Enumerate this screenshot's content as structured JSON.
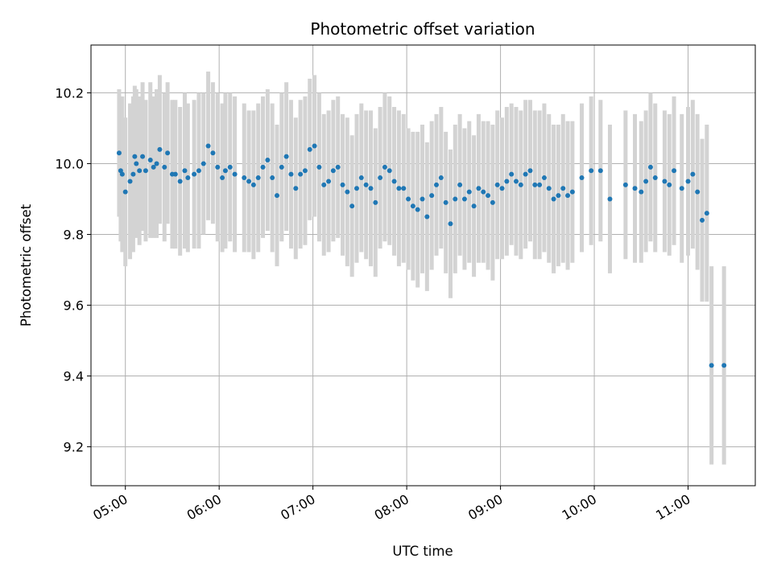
{
  "chart_data": {
    "type": "scatter",
    "title": "Photometric offset variation",
    "xlabel": "UTC time",
    "ylabel": "Photometric offset",
    "x_ticks": [
      "05:00",
      "06:00",
      "07:00",
      "08:00",
      "09:00",
      "10:00",
      "11:00"
    ],
    "y_ticks": [
      "9.2",
      "9.4",
      "9.6",
      "9.8",
      "10.0",
      "10.2"
    ],
    "xlim": [
      "04:38",
      "11:43"
    ],
    "ylim": [
      9.09,
      10.335
    ],
    "grid": true,
    "point_color": "#1f77b4",
    "errorbar_color": "#d3d3d3",
    "series": [
      {
        "x": [
          "04:56",
          "04:57",
          "04:58",
          "05:00",
          "05:03",
          "05:05",
          "05:06",
          "05:07",
          "05:09",
          "05:11",
          "05:13",
          "05:16",
          "05:18",
          "05:20",
          "05:22",
          "05:25",
          "05:27",
          "05:30",
          "05:32",
          "05:35",
          "05:38",
          "05:40",
          "05:44",
          "05:47",
          "05:50",
          "05:53",
          "05:56",
          "05:59",
          "06:02",
          "06:04",
          "06:07",
          "06:10",
          "06:16",
          "06:19",
          "06:22",
          "06:25",
          "06:28",
          "06:31",
          "06:34",
          "06:37",
          "06:40",
          "06:43",
          "06:46",
          "06:49",
          "06:52",
          "06:55",
          "06:58",
          "07:01",
          "07:04",
          "07:07",
          "07:10",
          "07:13",
          "07:16",
          "07:19",
          "07:22",
          "07:25",
          "07:28",
          "07:31",
          "07:34",
          "07:37",
          "07:40",
          "07:43",
          "07:46",
          "07:49",
          "07:52",
          "07:55",
          "07:58",
          "08:01",
          "08:04",
          "08:07",
          "08:10",
          "08:13",
          "08:16",
          "08:19",
          "08:22",
          "08:25",
          "08:28",
          "08:31",
          "08:34",
          "08:37",
          "08:40",
          "08:43",
          "08:46",
          "08:49",
          "08:52",
          "08:55",
          "08:58",
          "09:01",
          "09:04",
          "09:07",
          "09:10",
          "09:13",
          "09:16",
          "09:19",
          "09:22",
          "09:25",
          "09:28",
          "09:31",
          "09:34",
          "09:37",
          "09:40",
          "09:43",
          "09:46",
          "09:52",
          "09:58",
          "10:04",
          "10:10",
          "10:20",
          "10:26",
          "10:30",
          "10:33",
          "10:36",
          "10:39",
          "10:45",
          "10:48",
          "10:51",
          "10:56",
          "11:00",
          "11:03",
          "11:06",
          "11:09",
          "11:12",
          "11:15",
          "11:23"
        ],
        "y": [
          10.03,
          9.98,
          9.97,
          9.92,
          9.95,
          9.97,
          10.02,
          10.0,
          9.98,
          10.02,
          9.98,
          10.01,
          9.99,
          10.0,
          10.04,
          9.99,
          10.03,
          9.97,
          9.97,
          9.95,
          9.98,
          9.96,
          9.97,
          9.98,
          10.0,
          10.05,
          10.03,
          9.99,
          9.96,
          9.98,
          9.99,
          9.97,
          9.96,
          9.95,
          9.94,
          9.96,
          9.99,
          10.01,
          9.96,
          9.91,
          9.99,
          10.02,
          9.97,
          9.93,
          9.97,
          9.98,
          10.04,
          10.05,
          9.99,
          9.94,
          9.95,
          9.98,
          9.99,
          9.94,
          9.92,
          9.88,
          9.93,
          9.96,
          9.94,
          9.93,
          9.89,
          9.96,
          9.99,
          9.98,
          9.95,
          9.93,
          9.93,
          9.9,
          9.88,
          9.87,
          9.9,
          9.85,
          9.91,
          9.94,
          9.96,
          9.89,
          9.83,
          9.9,
          9.94,
          9.9,
          9.92,
          9.88,
          9.93,
          9.92,
          9.91,
          9.89,
          9.94,
          9.93,
          9.95,
          9.97,
          9.95,
          9.94,
          9.97,
          9.98,
          9.94,
          9.94,
          9.96,
          9.93,
          9.9,
          9.91,
          9.93,
          9.91,
          9.92,
          9.96,
          9.98,
          9.98,
          9.9,
          9.94,
          9.93,
          9.92,
          9.95,
          9.99,
          9.96,
          9.95,
          9.94,
          9.98,
          9.93,
          9.95,
          9.97,
          9.92,
          9.84,
          9.86,
          9.43,
          9.43
        ],
        "yerr": [
          0.18,
          0.2,
          0.22,
          0.21,
          0.22,
          0.22,
          0.2,
          0.21,
          0.21,
          0.21,
          0.2,
          0.22,
          0.2,
          0.21,
          0.21,
          0.21,
          0.2,
          0.21,
          0.21,
          0.21,
          0.22,
          0.21,
          0.21,
          0.22,
          0.2,
          0.21,
          0.2,
          0.21,
          0.21,
          0.22,
          0.21,
          0.22,
          0.21,
          0.2,
          0.21,
          0.21,
          0.2,
          0.2,
          0.21,
          0.2,
          0.21,
          0.21,
          0.21,
          0.2,
          0.21,
          0.21,
          0.2,
          0.2,
          0.21,
          0.2,
          0.2,
          0.2,
          0.2,
          0.2,
          0.21,
          0.2,
          0.21,
          0.21,
          0.21,
          0.22,
          0.21,
          0.2,
          0.21,
          0.21,
          0.21,
          0.22,
          0.21,
          0.2,
          0.21,
          0.22,
          0.21,
          0.21,
          0.21,
          0.2,
          0.2,
          0.2,
          0.21,
          0.21,
          0.2,
          0.2,
          0.2,
          0.2,
          0.21,
          0.2,
          0.21,
          0.22,
          0.21,
          0.2,
          0.21,
          0.2,
          0.21,
          0.21,
          0.21,
          0.2,
          0.21,
          0.21,
          0.21,
          0.21,
          0.21,
          0.2,
          0.21,
          0.21,
          0.2,
          0.21,
          0.21,
          0.2,
          0.21,
          0.21,
          0.21,
          0.2,
          0.2,
          0.21,
          0.21,
          0.2,
          0.2,
          0.21,
          0.21,
          0.21,
          0.21,
          0.22,
          0.23,
          0.25,
          0.28,
          0.28
        ]
      }
    ]
  }
}
